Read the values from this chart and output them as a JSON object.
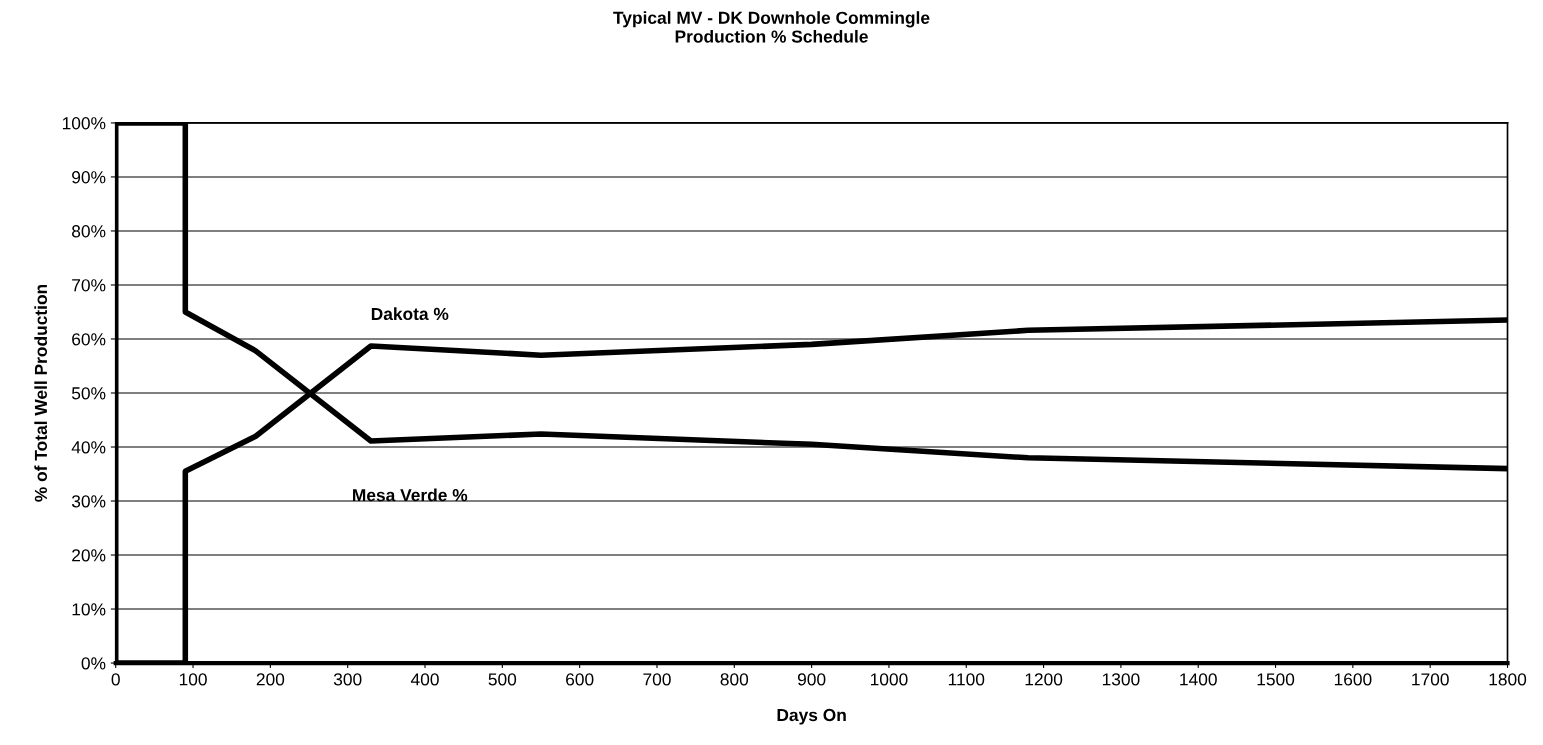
{
  "chart_data": {
    "type": "line",
    "title": "Typical MV - DK Downhole Commingle\nProduction % Schedule",
    "xlabel": "Days On",
    "ylabel": "% of Total Well Production",
    "series": [
      {
        "name": "Dakota %",
        "color": "#000000",
        "x": [
          0,
          90,
          90,
          181,
          330,
          550,
          900,
          1180,
          1800
        ],
        "values": [
          0,
          0,
          35.5,
          42,
          58.7,
          57,
          59,
          61.6,
          63.5
        ]
      },
      {
        "name": "Mesa Verde %",
        "color": "#000000",
        "x": [
          0,
          0,
          90,
          90,
          181,
          330,
          550,
          900,
          1180,
          1800
        ],
        "values": [
          0,
          100,
          100,
          65,
          57.8,
          41.1,
          42.4,
          40.5,
          38,
          36
        ]
      }
    ],
    "xlim": [
      0,
      1800
    ],
    "xticks": [
      0,
      100,
      200,
      300,
      400,
      500,
      600,
      700,
      800,
      900,
      1000,
      1100,
      1200,
      1300,
      1400,
      1500,
      1600,
      1700,
      1800
    ],
    "ylim": [
      0,
      100
    ],
    "yticks": [
      {
        "value": 0,
        "label": "0%"
      },
      {
        "value": 10,
        "label": "10%"
      },
      {
        "value": 20,
        "label": "20%"
      },
      {
        "value": 30,
        "label": "30%"
      },
      {
        "value": 40,
        "label": "40%"
      },
      {
        "value": 50,
        "label": "50%"
      },
      {
        "value": 60,
        "label": "60%"
      },
      {
        "value": 70,
        "label": "70%"
      },
      {
        "value": 80,
        "label": "80%"
      },
      {
        "value": 90,
        "label": "90%"
      },
      {
        "value": 100,
        "label": "100%"
      }
    ],
    "grid": "y",
    "legend": false,
    "marker": "none",
    "line_style": "solid"
  }
}
